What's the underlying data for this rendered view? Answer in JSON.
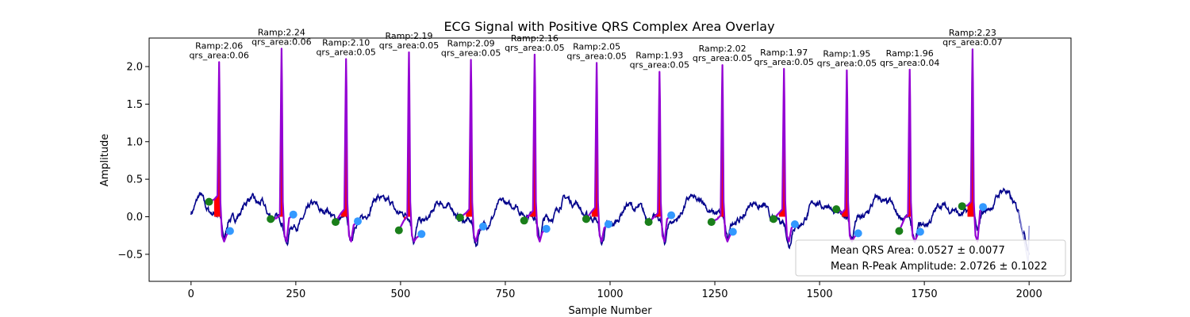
{
  "chart_data": {
    "type": "line",
    "title": "ECG Signal with Positive QRS Complex Area Overlay",
    "xlabel": "Sample Number",
    "ylabel": "Amplitude",
    "xlim": [
      -100,
      2100
    ],
    "ylim": [
      -0.86,
      2.38
    ],
    "x_ticks": [
      0,
      250,
      500,
      750,
      1000,
      1250,
      1500,
      1750,
      2000
    ],
    "y_ticks": [
      -0.5,
      0.0,
      0.5,
      1.0,
      1.5,
      2.0
    ],
    "grid": false,
    "colors": {
      "signal": "#00008b",
      "qrs": "#9400d3",
      "qrs_fill": "#ff0000",
      "q_marker": "#1a7f1a",
      "s_marker": "#3399ff"
    },
    "beats": [
      {
        "r_x": 67,
        "r_amp": 2.06,
        "q_x": 43,
        "q_y": 0.2,
        "s_x": 93,
        "s_y": -0.19,
        "base": 0.23,
        "ramp_label": "Ramp:2.06",
        "area_label": "qrs_area:0.06"
      },
      {
        "r_x": 216,
        "r_amp": 2.24,
        "q_x": 190,
        "q_y": -0.03,
        "s_x": 244,
        "s_y": 0.03,
        "base": -0.02,
        "ramp_label": "Ramp:2.24",
        "area_label": "qrs_area:0.06"
      },
      {
        "r_x": 370,
        "r_amp": 2.1,
        "q_x": 345,
        "q_y": -0.07,
        "s_x": 398,
        "s_y": -0.06,
        "base": 0.05,
        "ramp_label": "Ramp:2.10",
        "area_label": "qrs_area:0.05"
      },
      {
        "r_x": 520,
        "r_amp": 2.19,
        "q_x": 496,
        "q_y": -0.18,
        "s_x": 550,
        "s_y": -0.23,
        "base": -0.05,
        "ramp_label": "Ramp:2.19",
        "area_label": "qrs_area:0.05"
      },
      {
        "r_x": 668,
        "r_amp": 2.09,
        "q_x": 642,
        "q_y": -0.01,
        "s_x": 697,
        "s_y": -0.13,
        "base": 0.05,
        "ramp_label": "Ramp:2.09",
        "area_label": "qrs_area:0.05"
      },
      {
        "r_x": 820,
        "r_amp": 2.16,
        "q_x": 795,
        "q_y": -0.05,
        "s_x": 848,
        "s_y": -0.16,
        "base": 0.03,
        "ramp_label": "Ramp:2.16",
        "area_label": "qrs_area:0.05"
      },
      {
        "r_x": 968,
        "r_amp": 2.05,
        "q_x": 943,
        "q_y": -0.03,
        "s_x": 996,
        "s_y": -0.1,
        "base": 0.07,
        "ramp_label": "Ramp:2.05",
        "area_label": "qrs_area:0.05"
      },
      {
        "r_x": 1118,
        "r_amp": 1.93,
        "q_x": 1092,
        "q_y": -0.07,
        "s_x": 1146,
        "s_y": 0.02,
        "base": 0.0,
        "ramp_label": "Ramp:1.93",
        "area_label": "qrs_area:0.05"
      },
      {
        "r_x": 1268,
        "r_amp": 2.02,
        "q_x": 1242,
        "q_y": -0.07,
        "s_x": 1293,
        "s_y": -0.2,
        "base": -0.03,
        "ramp_label": "Ramp:2.02",
        "area_label": "qrs_area:0.05"
      },
      {
        "r_x": 1415,
        "r_amp": 1.97,
        "q_x": 1390,
        "q_y": -0.03,
        "s_x": 1441,
        "s_y": -0.1,
        "base": 0.05,
        "ramp_label": "Ramp:1.97",
        "area_label": "qrs_area:0.05"
      },
      {
        "r_x": 1565,
        "r_amp": 1.95,
        "q_x": 1540,
        "q_y": 0.1,
        "s_x": 1592,
        "s_y": -0.22,
        "base": 0.05,
        "ramp_label": "Ramp:1.95",
        "area_label": "qrs_area:0.05"
      },
      {
        "r_x": 1715,
        "r_amp": 1.96,
        "q_x": 1690,
        "q_y": -0.19,
        "s_x": 1740,
        "s_y": -0.2,
        "base": -0.02,
        "ramp_label": "Ramp:1.96",
        "area_label": "qrs_area:0.04"
      },
      {
        "r_x": 1865,
        "r_amp": 2.23,
        "q_x": 1840,
        "q_y": 0.14,
        "s_x": 1890,
        "s_y": 0.13,
        "base": 0.15,
        "ramp_label": "Ramp:2.23",
        "area_label": "qrs_area:0.07"
      }
    ],
    "legend": {
      "placement": "lower-right",
      "entries": [
        "Mean QRS Area: 0.0527 ± 0.0077",
        "Mean R-Peak Amplitude: 2.0726 ± 0.1022"
      ]
    }
  }
}
